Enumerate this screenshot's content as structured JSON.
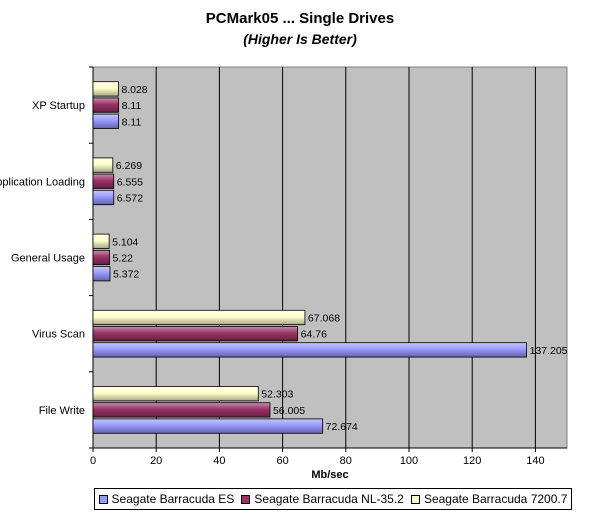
{
  "chart_data": {
    "type": "bar",
    "orientation": "horizontal",
    "title": "PCMark05 ... Single Drives",
    "subtitle": "(Higher Is Better)",
    "xlabel": "Mb/sec",
    "ylabel": "",
    "xlim": [
      0,
      150
    ],
    "xticks": [
      0,
      20,
      40,
      60,
      80,
      100,
      120,
      140
    ],
    "grid": true,
    "legend_position": "bottom",
    "categories": [
      "XP Startup",
      "Application Loading",
      "General Usage",
      "Virus Scan",
      "File Write"
    ],
    "series": [
      {
        "name": "Seagate Barracuda ES",
        "color": "#9999ff",
        "values": [
          8.11,
          6.572,
          5.372,
          137.205,
          72.674
        ],
        "labels": [
          "8.11",
          "6.572",
          "5.372",
          "137.205",
          "72.674"
        ]
      },
      {
        "name": "Seagate Barracuda NL-35.2",
        "color": "#993366",
        "values": [
          8.11,
          6.555,
          5.22,
          64.76,
          56.005
        ],
        "labels": [
          "8.11",
          "6.555",
          "5.22",
          "64.76",
          "56.005"
        ]
      },
      {
        "name": "Seagate Barracuda 7200.7",
        "color": "#ffffcc",
        "values": [
          8.028,
          6.269,
          5.104,
          67.068,
          52.303
        ],
        "labels": [
          "8.028",
          "6.269",
          "5.104",
          "67.068",
          "52.303"
        ]
      }
    ]
  }
}
